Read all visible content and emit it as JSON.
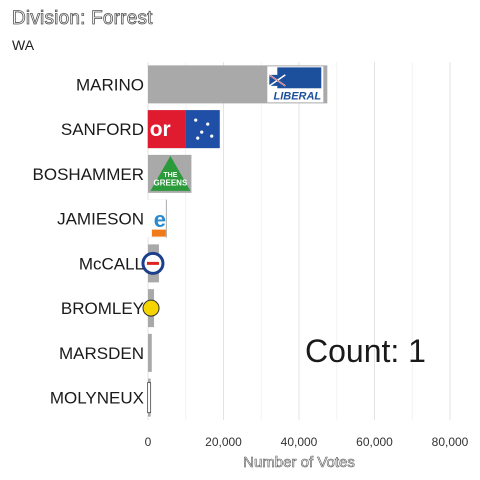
{
  "chart_data": {
    "type": "bar",
    "orientation": "horizontal",
    "title": "Division: Forrest",
    "subtitle": "WA",
    "categories": [
      "MARINO",
      "SANFORD",
      "BOSHAMMER",
      "JAMIESON",
      "McCALL",
      "BROMLEY",
      "MARSDEN",
      "MOLYNEUX"
    ],
    "values": [
      47500,
      19000,
      11500,
      5000,
      2900,
      1600,
      1000,
      700
    ],
    "party_logos": [
      "liberal",
      "labor",
      "greens",
      "one-nation",
      "christian",
      "yellow-party",
      "none",
      "other"
    ],
    "xlabel": "Number of Votes",
    "xlim": [
      0,
      80000
    ],
    "xticks": [
      0,
      20000,
      40000,
      60000,
      80000
    ],
    "xtick_labels": [
      "0",
      "20,000",
      "40,000",
      "60,000",
      "80,000"
    ],
    "annotation": "Count:  1",
    "grid": "vertical",
    "bar_color": "#a9a9a9"
  }
}
